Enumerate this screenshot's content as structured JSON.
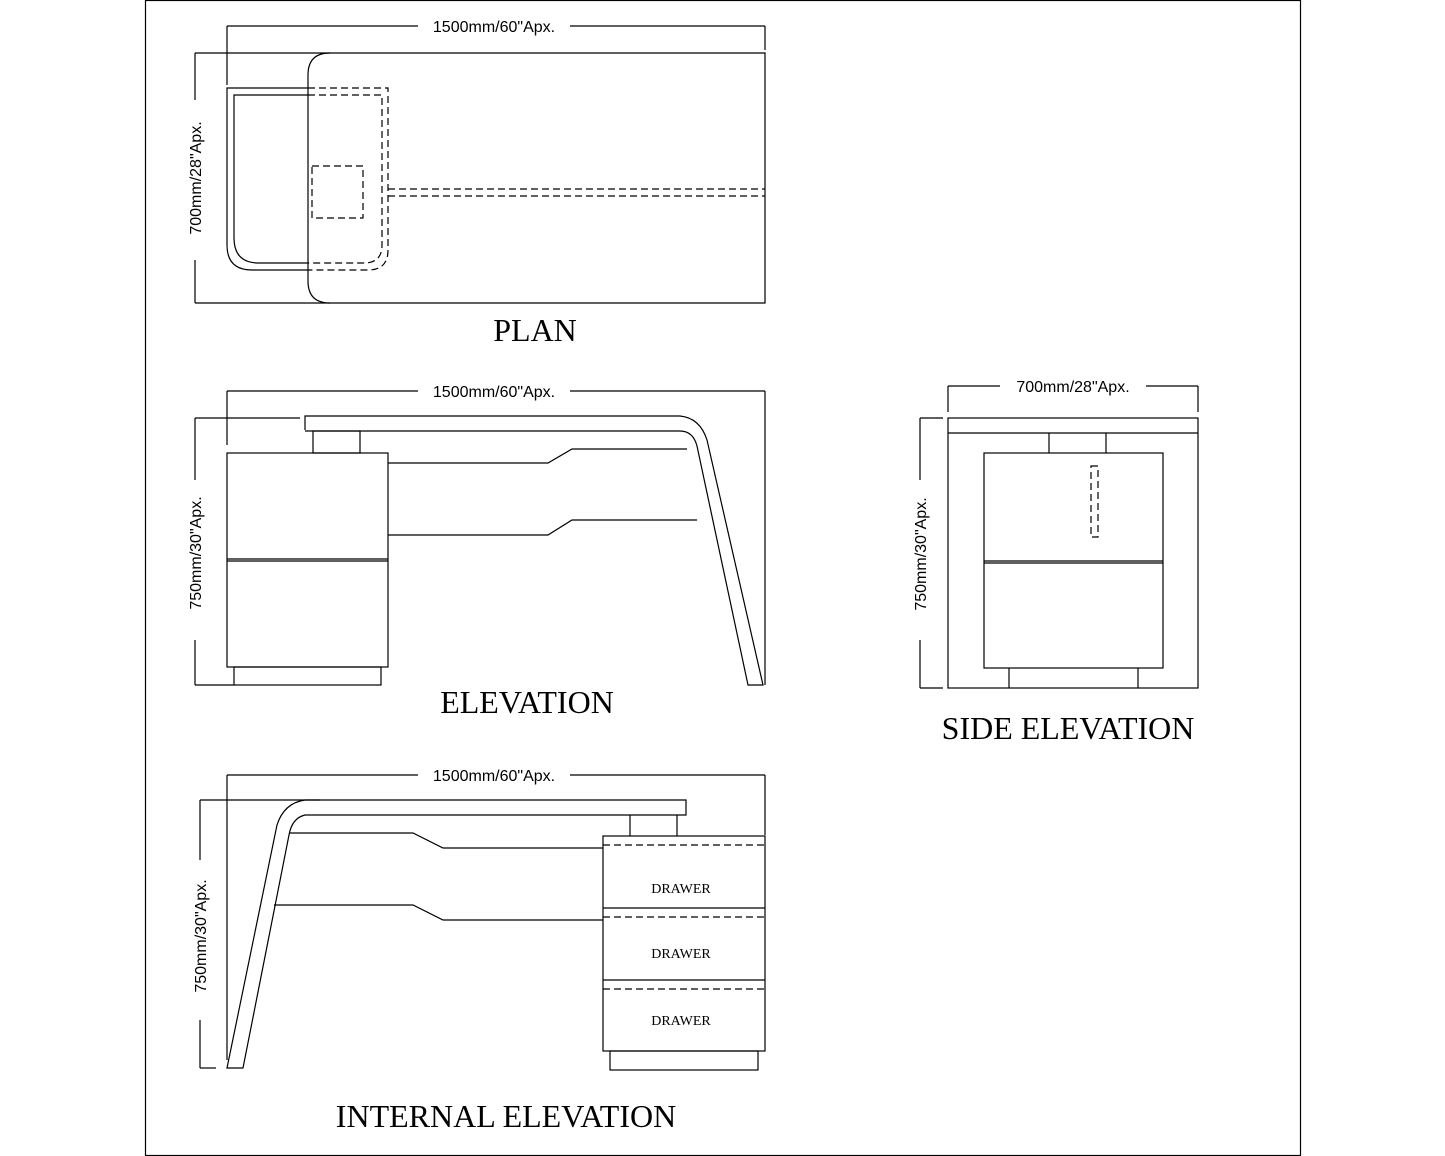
{
  "plan": {
    "title": "PLAN",
    "width_dim": "1500mm/60\"Apx.",
    "depth_dim": "700mm/28\"Apx."
  },
  "elevation": {
    "title": "ELEVATION",
    "width_dim": "1500mm/60\"Apx.",
    "height_dim": "750mm/30\"Apx."
  },
  "side_elevation": {
    "title": "SIDE ELEVATION",
    "width_dim": "700mm/28\"Apx.",
    "height_dim": "750mm/30\"Apx."
  },
  "internal_elevation": {
    "title": "INTERNAL ELEVATION",
    "width_dim": "1500mm/60\"Apx.",
    "height_dim": "750mm/30\"Apx.",
    "drawers": [
      "DRAWER",
      "DRAWER",
      "DRAWER"
    ]
  }
}
